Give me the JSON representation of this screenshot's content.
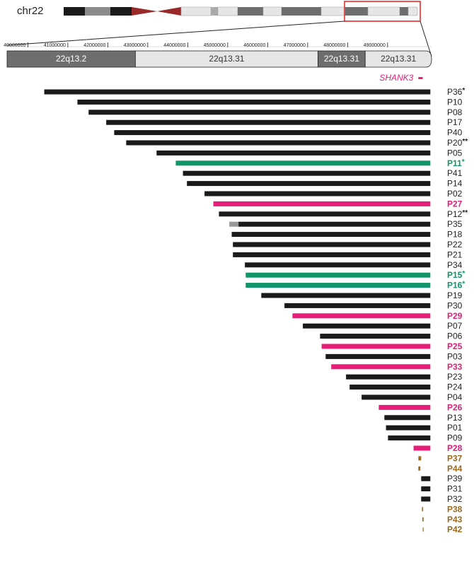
{
  "chart_data": {
    "type": "range_bar",
    "chromosome": "chr22",
    "xlim": [
      39480000,
      50100000
    ],
    "xticks": [
      40000000,
      41000000,
      42000000,
      43000000,
      44000000,
      45000000,
      46000000,
      47000000,
      48000000,
      49000000
    ],
    "bands": [
      {
        "name": "22q13.2",
        "start": 39480000,
        "end": 42690000,
        "color": "#6e6e6e"
      },
      {
        "name": "22q13.31",
        "start": 42690000,
        "end": 47260000,
        "color": "#e6e6e6"
      },
      {
        "name": "22q13.31",
        "start": 47260000,
        "end": 48440000,
        "color": "#6e6e6e"
      },
      {
        "name": "22q13.31",
        "start": 48440000,
        "end": 50100000,
        "color": "#e6e6e6"
      }
    ],
    "gene": {
      "name": "SHANK3",
      "start": 49770000,
      "end": 49880000,
      "color": "#e61e78"
    },
    "rows": [
      {
        "name": "P36",
        "mark": "*",
        "start": 40410000,
        "end": 50070000,
        "color": "#1a1a1a"
      },
      {
        "name": "P10",
        "start": 41240000,
        "end": 50070000,
        "color": "#1a1a1a"
      },
      {
        "name": "P08",
        "start": 41520000,
        "end": 50070000,
        "color": "#1a1a1a"
      },
      {
        "name": "P17",
        "start": 41960000,
        "end": 50070000,
        "color": "#1a1a1a"
      },
      {
        "name": "P40",
        "start": 42160000,
        "end": 50070000,
        "color": "#1a1a1a"
      },
      {
        "name": "P20",
        "mark": "**",
        "start": 42460000,
        "end": 50070000,
        "color": "#1a1a1a"
      },
      {
        "name": "P05",
        "start": 43220000,
        "end": 50070000,
        "color": "#1a1a1a"
      },
      {
        "name": "P11",
        "mark": "*",
        "start": 43700000,
        "end": 50070000,
        "color": "#10966a"
      },
      {
        "name": "P41",
        "start": 43880000,
        "end": 50070000,
        "color": "#1a1a1a"
      },
      {
        "name": "P14",
        "start": 43980000,
        "end": 50070000,
        "color": "#1a1a1a"
      },
      {
        "name": "P02",
        "start": 44420000,
        "end": 50070000,
        "color": "#1a1a1a"
      },
      {
        "name": "P27",
        "start": 44640000,
        "end": 50070000,
        "color": "#e61e78"
      },
      {
        "name": "P12",
        "mark": "**",
        "start": 44780000,
        "end": 50070000,
        "color": "#1a1a1a"
      },
      {
        "name": "P35",
        "uncertain_start": 45040000,
        "start": 45270000,
        "end": 50070000,
        "color": "#1a1a1a"
      },
      {
        "name": "P18",
        "start": 45100000,
        "end": 50070000,
        "color": "#1a1a1a"
      },
      {
        "name": "P22",
        "start": 45130000,
        "end": 50070000,
        "color": "#1a1a1a"
      },
      {
        "name": "P21",
        "start": 45130000,
        "end": 50070000,
        "color": "#1a1a1a"
      },
      {
        "name": "P34",
        "start": 45430000,
        "end": 50070000,
        "color": "#1a1a1a"
      },
      {
        "name": "P15",
        "mark": "*",
        "start": 45450000,
        "end": 50070000,
        "color": "#10966a"
      },
      {
        "name": "P16",
        "mark": "*",
        "start": 45450000,
        "end": 50070000,
        "color": "#10966a"
      },
      {
        "name": "P19",
        "start": 45840000,
        "end": 50070000,
        "color": "#1a1a1a"
      },
      {
        "name": "P30",
        "start": 46420000,
        "end": 50070000,
        "color": "#1a1a1a"
      },
      {
        "name": "P29",
        "start": 46620000,
        "end": 50070000,
        "color": "#e61e78"
      },
      {
        "name": "P07",
        "start": 46880000,
        "end": 50070000,
        "color": "#1a1a1a"
      },
      {
        "name": "P06",
        "start": 47310000,
        "end": 50070000,
        "color": "#1a1a1a"
      },
      {
        "name": "P25",
        "start": 47350000,
        "end": 50070000,
        "color": "#e61e78"
      },
      {
        "name": "P03",
        "start": 47450000,
        "end": 50070000,
        "color": "#1a1a1a"
      },
      {
        "name": "P33",
        "start": 47590000,
        "end": 50070000,
        "color": "#e61e78"
      },
      {
        "name": "P23",
        "start": 47960000,
        "end": 50070000,
        "color": "#1a1a1a"
      },
      {
        "name": "P24",
        "start": 48050000,
        "end": 50070000,
        "color": "#1a1a1a"
      },
      {
        "name": "P04",
        "start": 48350000,
        "end": 50070000,
        "color": "#1a1a1a"
      },
      {
        "name": "P26",
        "start": 48780000,
        "end": 50070000,
        "color": "#e61e78"
      },
      {
        "name": "P13",
        "start": 48920000,
        "end": 50070000,
        "color": "#1a1a1a"
      },
      {
        "name": "P01",
        "start": 48960000,
        "end": 50070000,
        "color": "#1a1a1a"
      },
      {
        "name": "P09",
        "start": 49010000,
        "end": 50070000,
        "color": "#1a1a1a"
      },
      {
        "name": "P28",
        "start": 49650000,
        "end": 50070000,
        "color": "#e61e78"
      },
      {
        "name": "P37",
        "start": 49770000,
        "end": 49840000,
        "color": "#9c6a1e"
      },
      {
        "name": "P44",
        "start": 49770000,
        "end": 49820000,
        "color": "#9c6a1e"
      },
      {
        "name": "P39",
        "start": 49840000,
        "end": 50070000,
        "color": "#1a1a1a"
      },
      {
        "name": "P31",
        "start": 49840000,
        "end": 50070000,
        "color": "#1a1a1a"
      },
      {
        "name": "P32",
        "start": 49840000,
        "end": 50070000,
        "color": "#1a1a1a"
      },
      {
        "name": "P38",
        "start": 49860000,
        "end": 49890000,
        "color": "#9c6a1e"
      },
      {
        "name": "P43",
        "start": 49870000,
        "end": 49900000,
        "color": "#9c6a1e"
      },
      {
        "name": "P42",
        "start": 49880000,
        "end": 49900000,
        "color": "#9c6a1e"
      }
    ]
  }
}
